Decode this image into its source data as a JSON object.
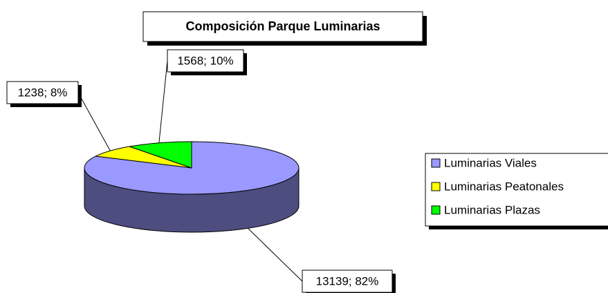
{
  "chart_data": {
    "type": "pie3d",
    "title": "Composición Parque Luminarias",
    "categories": [
      "Luminarias Viales",
      "Luminarias Peatonales",
      "Luminarias Plazas"
    ],
    "values": [
      13139,
      1238,
      1568
    ],
    "value_labels": [
      "13139; 82%",
      "1238; 8%",
      "1568; 10%"
    ],
    "colors": [
      "#9999ff",
      "#ffff00",
      "#00ff00"
    ],
    "legend": "right"
  }
}
